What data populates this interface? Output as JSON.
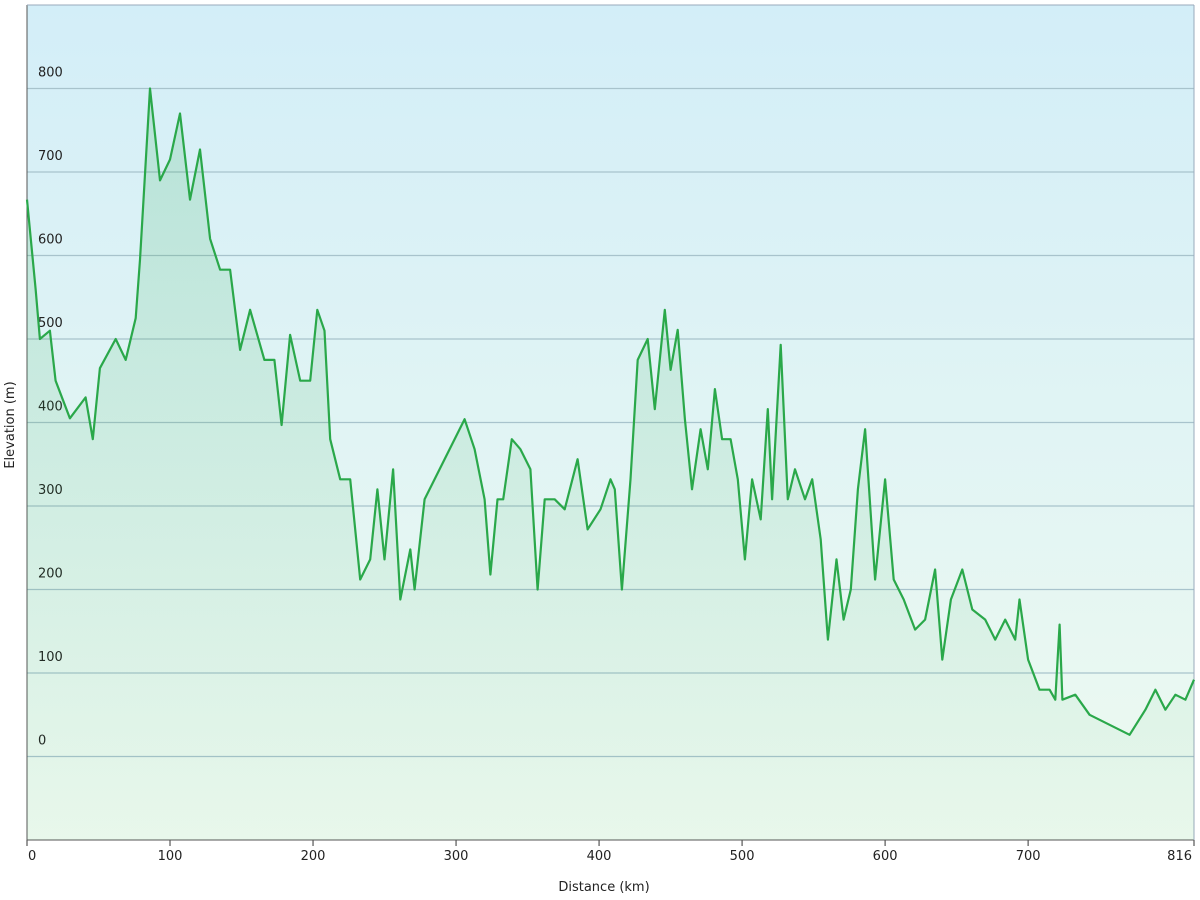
{
  "chart_data": {
    "type": "area",
    "x_label": "Distance  (km)",
    "y_label": "Elevation (m)",
    "color": "#2aa84a",
    "grid": true,
    "xlim": [
      0,
      816
    ],
    "ylim": [
      -100,
      900
    ],
    "xticks": [
      0,
      100,
      200,
      300,
      400,
      500,
      600,
      700,
      816
    ],
    "yticks": [
      0,
      100,
      200,
      300,
      400,
      500,
      600,
      700,
      800
    ],
    "x": [
      0,
      6,
      9,
      16,
      20,
      30,
      41,
      46,
      51,
      62,
      69,
      76,
      79,
      86,
      93,
      100,
      107,
      114,
      121,
      128,
      135,
      142,
      149,
      156,
      166,
      173,
      178,
      184,
      191,
      198,
      203,
      208,
      212,
      219,
      226,
      233,
      240,
      245,
      250,
      256,
      261,
      268,
      271,
      278,
      285,
      292,
      299,
      306,
      313,
      320,
      324,
      329,
      333,
      339,
      345,
      352,
      357,
      362,
      369,
      376,
      385,
      392,
      401,
      408,
      411,
      416,
      422,
      427,
      434,
      439,
      446,
      450,
      455,
      460,
      465,
      471,
      476,
      481,
      486,
      492,
      497,
      502,
      507,
      513,
      518,
      521,
      527,
      532,
      537,
      544,
      549,
      555,
      560,
      566,
      571,
      576,
      581,
      586,
      593,
      600,
      606,
      613,
      621,
      628,
      635,
      640,
      646,
      654,
      661,
      670,
      677,
      684,
      691,
      694,
      700,
      708,
      715,
      719,
      722,
      724,
      733,
      743,
      757,
      771,
      782,
      789,
      796,
      803,
      810,
      816
    ],
    "values": [
      667,
      560,
      500,
      510,
      450,
      405,
      430,
      380,
      465,
      500,
      475,
      525,
      595,
      800,
      690,
      715,
      770,
      667,
      727,
      620,
      583,
      583,
      487,
      535,
      475,
      475,
      397,
      505,
      450,
      450,
      535,
      510,
      380,
      332,
      332,
      212,
      236,
      320,
      236,
      344,
      188,
      248,
      200,
      308,
      332,
      356,
      380,
      404,
      368,
      308,
      218,
      308,
      308,
      380,
      368,
      344,
      200,
      308,
      308,
      296,
      356,
      272,
      296,
      332,
      320,
      200,
      332,
      475,
      500,
      416,
      535,
      463,
      511,
      404,
      320,
      392,
      344,
      440,
      380,
      380,
      332,
      236,
      332,
      284,
      416,
      308,
      493,
      308,
      344,
      308,
      332,
      260,
      140,
      236,
      164,
      200,
      320,
      392,
      212,
      332,
      212,
      188,
      152,
      164,
      224,
      116,
      188,
      224,
      176,
      164,
      140,
      164,
      140,
      188,
      116,
      80,
      80,
      68,
      158,
      68,
      74,
      50,
      38,
      26,
      56,
      80,
      56,
      74,
      68,
      92
    ]
  }
}
